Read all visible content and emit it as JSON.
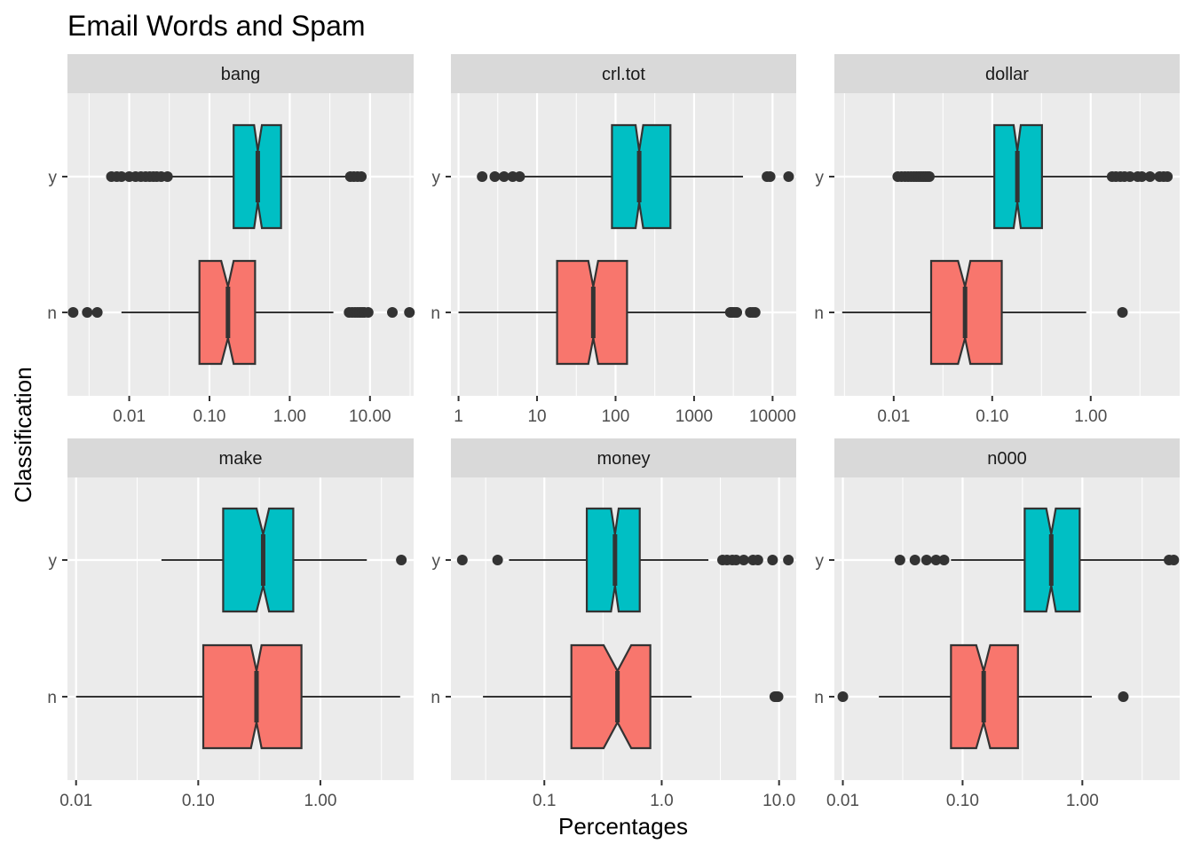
{
  "chart_data": {
    "type": "boxplot",
    "title": "Email Words and Spam",
    "xlabel": "Percentages",
    "ylabel": "Classification",
    "x_scale": "log10",
    "categories": [
      "n",
      "y"
    ],
    "notched": true,
    "legend": "none",
    "grid": true,
    "colors": {
      "n": "#F8766D",
      "y": "#00BFC4",
      "panel_bg": "#EBEBEB",
      "strip_bg": "#D9D9D9",
      "grid": "#FFFFFF",
      "outline": "#333333"
    },
    "panels": [
      {
        "name": "bang",
        "xlim": [
          0.0017,
          35
        ],
        "ticks": [
          0.01,
          0.1,
          1,
          10
        ],
        "tick_labels": [
          "0.01",
          "0.10",
          "1.00",
          "10.00"
        ],
        "boxes": {
          "n": {
            "whisker_low": 0.008,
            "q1": 0.075,
            "median": 0.17,
            "q3": 0.37,
            "whisker_high": 3.5,
            "notch_low": 0.14,
            "notch_high": 0.2,
            "outliers": [
              0.002,
              0.003,
              0.004,
              5.5,
              6.0,
              6.5,
              7.0,
              7.5,
              8.0,
              8.5,
              9.5,
              19,
              31
            ]
          },
          "y": {
            "whisker_low": 0.03,
            "q1": 0.2,
            "median": 0.4,
            "q3": 0.78,
            "whisker_high": 5.5,
            "notch_low": 0.36,
            "notch_high": 0.45,
            "outliers": [
              0.006,
              0.007,
              0.008,
              0.01,
              0.012,
              0.014,
              0.016,
              0.018,
              0.02,
              0.022,
              0.025,
              0.03,
              5.7,
              6.3,
              7.0,
              7.8
            ]
          }
        }
      },
      {
        "name": "crl.tot",
        "xlim": [
          0.8,
          20000
        ],
        "ticks": [
          1,
          10,
          100,
          1000,
          10000
        ],
        "tick_labels": [
          "1",
          "10",
          "100",
          "1000",
          "10000"
        ],
        "boxes": {
          "n": {
            "whisker_low": 1,
            "q1": 18,
            "median": 52,
            "q3": 140,
            "whisker_high": 2800,
            "notch_low": 45,
            "notch_high": 60,
            "outliers": [
              2900,
              3000,
              3100,
              3300,
              3500,
              5200,
              5600,
              6000
            ]
          },
          "y": {
            "whisker_low": 6,
            "q1": 90,
            "median": 200,
            "q3": 500,
            "whisker_high": 4200,
            "notch_low": 180,
            "notch_high": 225,
            "outliers": [
              2,
              2.9,
              3.8,
              4.9,
              6,
              8500,
              9300,
              16000
            ]
          }
        }
      },
      {
        "name": "dollar",
        "xlim": [
          0.0025,
          8
        ],
        "ticks": [
          0.01,
          0.1,
          1
        ],
        "tick_labels": [
          "0.01",
          "0.10",
          "1.00"
        ],
        "boxes": {
          "n": {
            "whisker_low": 0.003,
            "q1": 0.024,
            "median": 0.053,
            "q3": 0.125,
            "whisker_high": 0.9,
            "notch_low": 0.045,
            "notch_high": 0.06,
            "outliers": [
              2.1
            ]
          },
          "y": {
            "whisker_low": 0.025,
            "q1": 0.105,
            "median": 0.18,
            "q3": 0.32,
            "whisker_high": 1.6,
            "notch_low": 0.165,
            "notch_high": 0.195,
            "outliers": [
              0.011,
              0.012,
              0.013,
              0.014,
              0.015,
              0.016,
              0.017,
              0.018,
              0.019,
              0.02,
              0.021,
              0.022,
              0.023,
              1.65,
              1.8,
              2.0,
              2.2,
              2.5,
              3.0,
              3.3,
              4.0,
              5.0,
              5.5,
              6.0
            ]
          }
        }
      },
      {
        "name": "make",
        "xlim": [
          0.0085,
          5.8
        ],
        "ticks": [
          0.01,
          0.1,
          1
        ],
        "tick_labels": [
          "0.01",
          "0.10",
          "1.00"
        ],
        "boxes": {
          "n": {
            "whisker_low": 0.01,
            "q1": 0.11,
            "median": 0.3,
            "q3": 0.7,
            "whisker_high": 4.5,
            "notch_low": 0.27,
            "notch_high": 0.33,
            "outliers": []
          },
          "y": {
            "whisker_low": 0.05,
            "q1": 0.16,
            "median": 0.34,
            "q3": 0.6,
            "whisker_high": 2.4,
            "notch_low": 0.3,
            "notch_high": 0.38,
            "outliers": [
              4.6
            ]
          }
        }
      },
      {
        "name": "money",
        "xlim": [
          0.016,
          14
        ],
        "ticks": [
          0.1,
          1,
          10
        ],
        "tick_labels": [
          "0.1",
          "1.0",
          "10.0"
        ],
        "boxes": {
          "n": {
            "whisker_low": 0.03,
            "q1": 0.17,
            "median": 0.42,
            "q3": 0.8,
            "whisker_high": 1.8,
            "notch_low": 0.32,
            "notch_high": 0.55,
            "outliers": [
              9.2,
              9.5,
              9.8
            ]
          },
          "y": {
            "whisker_low": 0.05,
            "q1": 0.23,
            "median": 0.4,
            "q3": 0.65,
            "whisker_high": 2.5,
            "notch_low": 0.37,
            "notch_high": 0.43,
            "outliers": [
              0.02,
              0.04,
              3.3,
              3.6,
              4.0,
              4.3,
              5.0,
              6.0,
              6.6,
              8.8,
              12.0
            ]
          }
        }
      },
      {
        "name": "n000",
        "xlim": [
          0.0085,
          6.5
        ],
        "ticks": [
          0.01,
          0.1,
          1
        ],
        "tick_labels": [
          "0.01",
          "0.10",
          "1.00"
        ],
        "boxes": {
          "n": {
            "whisker_low": 0.02,
            "q1": 0.08,
            "median": 0.15,
            "q3": 0.29,
            "whisker_high": 1.2,
            "notch_low": 0.13,
            "notch_high": 0.17,
            "outliers": [
              0.01,
              2.2
            ]
          },
          "y": {
            "whisker_low": 0.08,
            "q1": 0.33,
            "median": 0.55,
            "q3": 0.95,
            "whisker_high": 5.0,
            "notch_low": 0.5,
            "notch_high": 0.6,
            "outliers": [
              0.03,
              0.04,
              0.05,
              0.06,
              0.07,
              5.3,
              5.8
            ]
          }
        }
      }
    ]
  }
}
